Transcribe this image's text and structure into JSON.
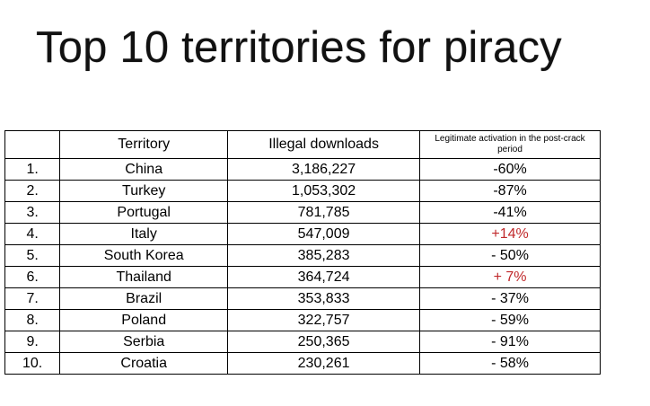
{
  "title": "Top 10 territories for piracy",
  "table": {
    "headers": {
      "rank": "",
      "territory": "Territory",
      "downloads": "Illegal downloads",
      "activation": "Legitimate activation in the post-crack period"
    },
    "rows": [
      {
        "rank": "1.",
        "territory": "China",
        "downloads": "3,186,227",
        "activation": "-60%",
        "positive": false
      },
      {
        "rank": "2.",
        "territory": "Turkey",
        "downloads": "1,053,302",
        "activation": "-87%",
        "positive": false
      },
      {
        "rank": "3.",
        "territory": "Portugal",
        "downloads": "781,785",
        "activation": "-41%",
        "positive": false
      },
      {
        "rank": "4.",
        "territory": "Italy",
        "downloads": "547,009",
        "activation": "+14%",
        "positive": true
      },
      {
        "rank": "5.",
        "territory": "South Korea",
        "downloads": "385,283",
        "activation": "- 50%",
        "positive": false
      },
      {
        "rank": "6.",
        "territory": "Thailand",
        "downloads": "364,724",
        "activation": "+ 7%",
        "positive": true
      },
      {
        "rank": "7.",
        "territory": "Brazil",
        "downloads": "353,833",
        "activation": "- 37%",
        "positive": false
      },
      {
        "rank": "8.",
        "territory": "Poland",
        "downloads": "322,757",
        "activation": "- 59%",
        "positive": false
      },
      {
        "rank": "9.",
        "territory": "Serbia",
        "downloads": "250,365",
        "activation": "- 91%",
        "positive": false
      },
      {
        "rank": "10.",
        "territory": "Croatia",
        "downloads": "230,261",
        "activation": "- 58%",
        "positive": false
      }
    ]
  },
  "colors": {
    "positive_change": "#c0292b",
    "border": "#000000",
    "background": "#ffffff"
  }
}
